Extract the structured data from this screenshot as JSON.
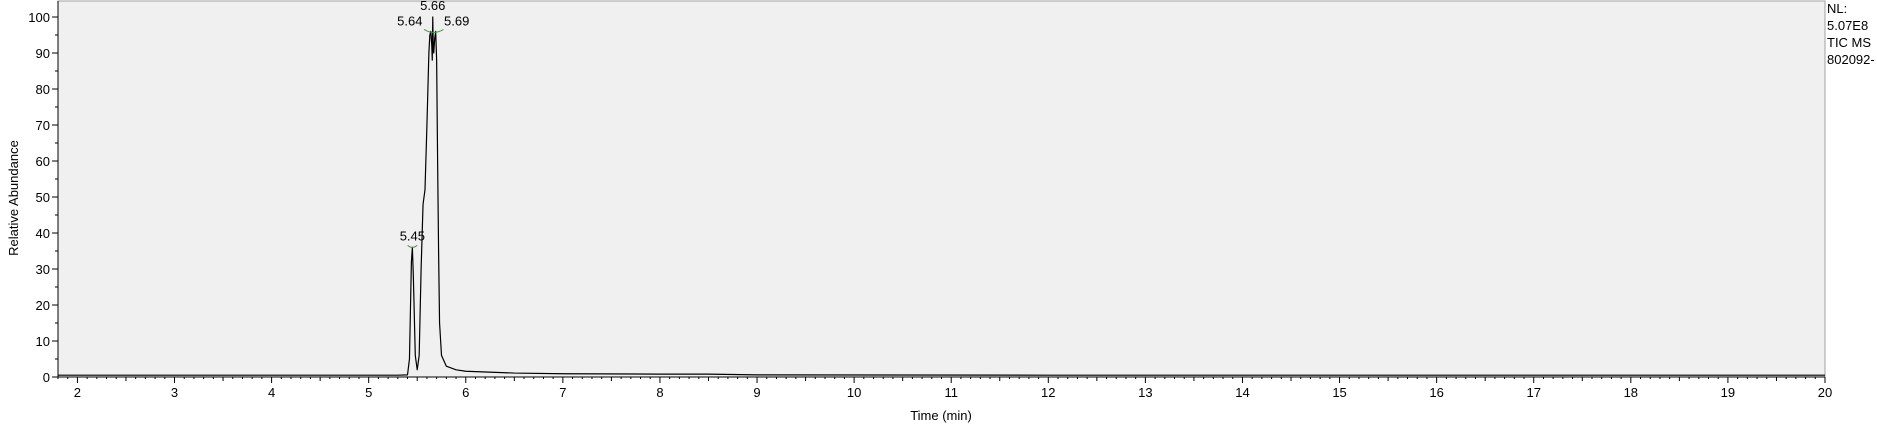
{
  "chart_data": {
    "type": "line",
    "xlabel": "Time (min)",
    "ylabel": "Relative Abundance",
    "xlim": [
      1.8,
      20.0
    ],
    "ylim": [
      0,
      100
    ],
    "x_ticks": [
      2,
      3,
      4,
      5,
      6,
      7,
      8,
      9,
      10,
      11,
      12,
      13,
      14,
      15,
      16,
      17,
      18,
      19,
      20
    ],
    "y_ticks": [
      0,
      10,
      20,
      30,
      40,
      50,
      60,
      70,
      80,
      90,
      100
    ],
    "grid": false,
    "colors": {
      "trace": "#000000",
      "plot_bg": "#f0f0f0",
      "peak_marker": "#3a9a3a"
    },
    "series": [
      {
        "points": [
          [
            1.8,
            0.5
          ],
          [
            5.3,
            0.5
          ],
          [
            5.4,
            0.6
          ],
          [
            5.42,
            5
          ],
          [
            5.44,
            32
          ],
          [
            5.45,
            36
          ],
          [
            5.46,
            28
          ],
          [
            5.48,
            6
          ],
          [
            5.5,
            2
          ],
          [
            5.52,
            6
          ],
          [
            5.54,
            30
          ],
          [
            5.56,
            48
          ],
          [
            5.58,
            52
          ],
          [
            5.6,
            70
          ],
          [
            5.62,
            90
          ],
          [
            5.63,
            95
          ],
          [
            5.64,
            96
          ],
          [
            5.65,
            92
          ],
          [
            5.655,
            88
          ],
          [
            5.66,
            100
          ],
          [
            5.665,
            92
          ],
          [
            5.67,
            90
          ],
          [
            5.68,
            94
          ],
          [
            5.69,
            96
          ],
          [
            5.7,
            88
          ],
          [
            5.71,
            60
          ],
          [
            5.72,
            35
          ],
          [
            5.73,
            15
          ],
          [
            5.75,
            6
          ],
          [
            5.8,
            3
          ],
          [
            5.9,
            2
          ],
          [
            6.0,
            1.6
          ],
          [
            6.5,
            1.1
          ],
          [
            7.0,
            0.9
          ],
          [
            8.0,
            0.8
          ],
          [
            8.5,
            0.8
          ],
          [
            9.0,
            0.6
          ],
          [
            12.0,
            0.5
          ],
          [
            16.0,
            0.5
          ],
          [
            20.0,
            0.5
          ]
        ]
      }
    ],
    "peak_labels": [
      {
        "label": "5.45",
        "x": 5.45,
        "y": 36
      },
      {
        "label": "5.64",
        "x": 5.64,
        "y": 96
      },
      {
        "label": "5.66",
        "x": 5.66,
        "y": 100
      },
      {
        "label": "5.69",
        "x": 5.69,
        "y": 96
      }
    ],
    "side_info": [
      "NL:",
      "5.07E8",
      "TIC  MS",
      "802092-"
    ]
  }
}
